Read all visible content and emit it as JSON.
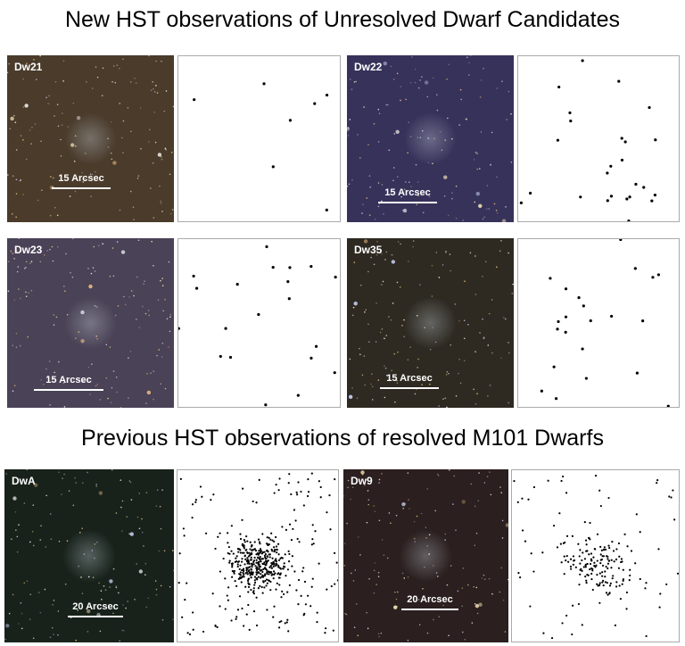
{
  "sections": [
    {
      "title": "New HST observations of Unresolved Dwarf Candidates",
      "panels": [
        {
          "label": "Dw21",
          "scale": "15 Arcsec"
        },
        {
          "label": "Dw22",
          "scale": "15 Arcsec"
        },
        {
          "label": "Dw23",
          "scale": "15 Arcsec"
        },
        {
          "label": "Dw35",
          "scale": "15 Arcsec"
        }
      ]
    },
    {
      "title": "Previous HST observations of resolved M101 Dwarfs",
      "panels": [
        {
          "label": "DwA",
          "scale": "20 Arcsec"
        },
        {
          "label": "Dw9",
          "scale": "20 Arcsec"
        }
      ]
    }
  ]
}
